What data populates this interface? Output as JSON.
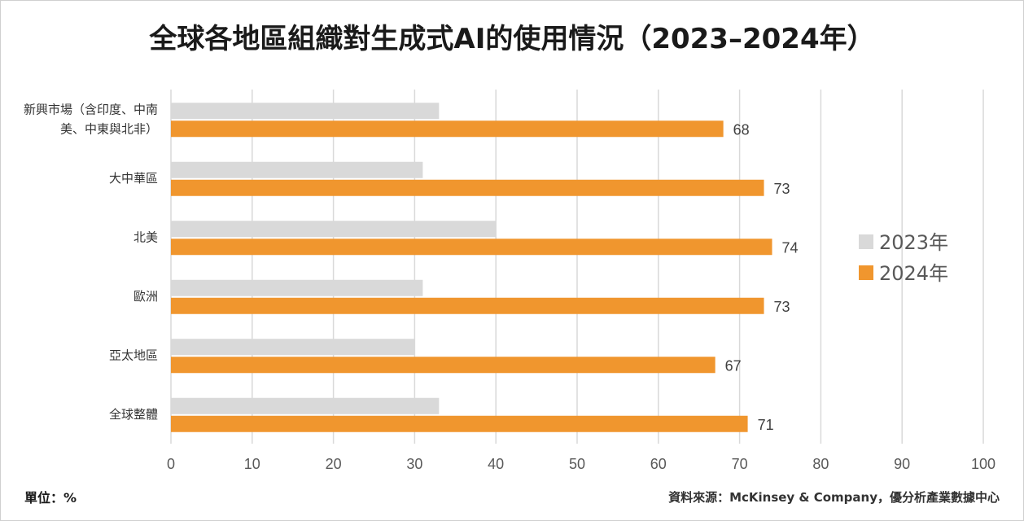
{
  "chart_data": {
    "type": "bar",
    "orientation": "horizontal",
    "title": "全球各地區組織對生成式AI的使用情況（2023–2024年）",
    "categories": [
      [
        "新興市場（含印度、中南",
        "美、中東與北非）"
      ],
      [
        "大中華區"
      ],
      [
        "北美"
      ],
      [
        "歐洲"
      ],
      [
        "亞太地區"
      ],
      [
        "全球整體"
      ]
    ],
    "series": [
      {
        "name": "2023年",
        "color": "#d9d9d9",
        "values": [
          33,
          31,
          40,
          31,
          30,
          33
        ],
        "show_labels": false
      },
      {
        "name": "2024年",
        "color": "#f0962e",
        "values": [
          68,
          73,
          74,
          73,
          67,
          71
        ],
        "show_labels": true
      }
    ],
    "xlim": [
      0,
      100
    ],
    "xticks": [
      0,
      10,
      20,
      30,
      40,
      50,
      60,
      70,
      80,
      90,
      100
    ],
    "grid": true,
    "legend_position": "right"
  },
  "footer": {
    "unit": "單位：%",
    "source": "資料來源：McKinsey & Company，優分析產業數據中心"
  }
}
